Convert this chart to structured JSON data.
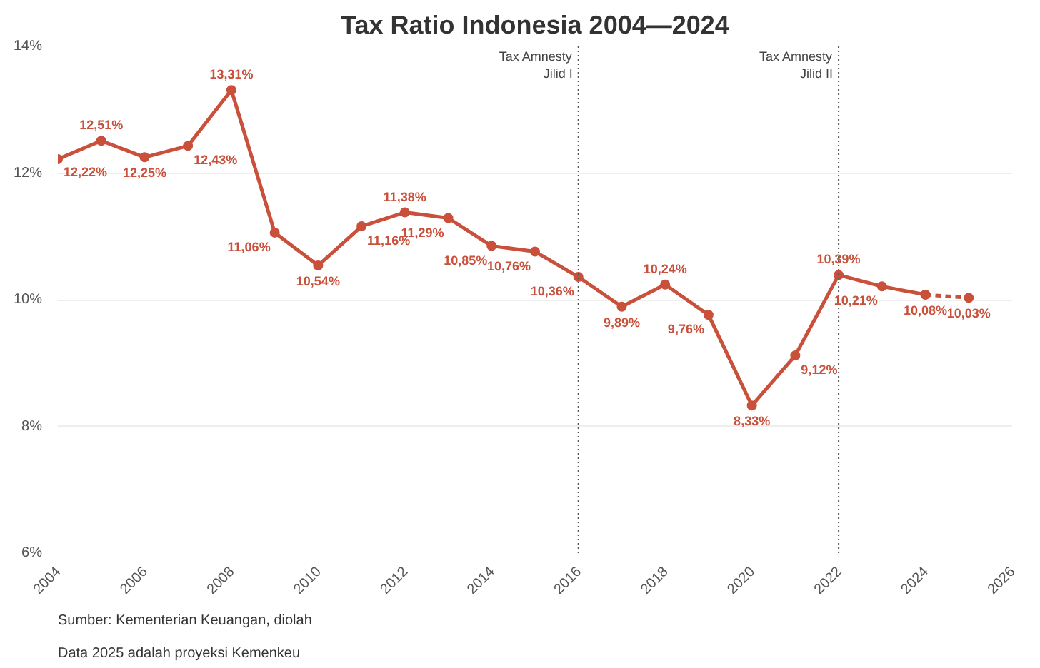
{
  "chart_data": {
    "type": "line",
    "title": "Tax Ratio Indonesia 2004—2024",
    "xlim": [
      2004,
      2026
    ],
    "xticks": [
      2004,
      2006,
      2008,
      2010,
      2012,
      2014,
      2016,
      2018,
      2020,
      2022,
      2024,
      2026
    ],
    "ylim": [
      6,
      14
    ],
    "yticks": [
      {
        "value": 6,
        "label": "6%"
      },
      {
        "value": 8,
        "label": "8%"
      },
      {
        "value": 10,
        "label": "10%"
      },
      {
        "value": 12,
        "label": "12%"
      },
      {
        "value": 14,
        "label": "14%"
      }
    ],
    "grid": "y",
    "marker": "circle",
    "series": [
      {
        "color": "#c9503a",
        "line_style": "solid",
        "x": [
          2004,
          2005,
          2006,
          2007,
          2008,
          2009,
          2010,
          2011,
          2012,
          2013,
          2014,
          2015,
          2016,
          2017,
          2018,
          2019,
          2020,
          2021,
          2022,
          2023,
          2024
        ],
        "values": [
          12.22,
          12.51,
          12.25,
          12.43,
          13.31,
          11.06,
          10.54,
          11.16,
          11.38,
          11.29,
          10.85,
          10.76,
          10.36,
          9.89,
          10.24,
          9.76,
          8.33,
          9.12,
          10.39,
          10.21,
          10.08
        ],
        "value_labels": [
          "12,22%",
          "12,51%",
          "12,25%",
          "12,43%",
          "13,31%",
          "11,06%",
          "10,54%",
          "11,16%",
          "11,38%",
          "11,29%",
          "10,85%",
          "10,76%",
          "10,36%",
          "9,89%",
          "10,24%",
          "9,76%",
          "8,33%",
          "9,12%",
          "10,39%",
          "10,21%",
          "10,08%"
        ]
      },
      {
        "color": "#c9503a",
        "line_style": "dashed",
        "x": [
          2024,
          2025
        ],
        "values": [
          10.08,
          10.03
        ],
        "value_labels": [
          null,
          "10,03%"
        ]
      }
    ],
    "ref_lines": [
      {
        "axis": "x",
        "value": 2016,
        "label": "Tax Amnesty\nJilid I",
        "color": "#555555",
        "line_style": "dotted"
      },
      {
        "axis": "x",
        "value": 2022,
        "label": "Tax Amnesty\nJilid II",
        "color": "#555555",
        "line_style": "dotted"
      }
    ],
    "annotations": [
      "Sumber: Kementerian Keuangan, diolah",
      "Data 2025 adalah proyeksi Kemenkeu"
    ]
  }
}
